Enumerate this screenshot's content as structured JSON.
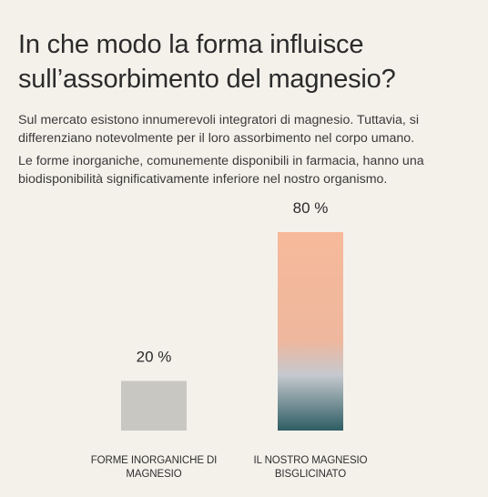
{
  "title": "In che modo la forma influisce sull’assorbimento del magnesio?",
  "paragraphs": [
    "Sul mercato esistono innumerevoli integratori di magnesio. Tuttavia, si differenziano notevolmente per il loro assorbimento nel corpo umano.",
    "Le forme inorganiche, comunemente disponibili in farmacia, hanno una biodisponibilità significativamente inferiore nel nostro organismo."
  ],
  "chart_data": {
    "type": "bar",
    "categories": [
      [
        "FORME INORGANICHE DI",
        "MAGNESIO"
      ],
      [
        "IL NOSTRO MAGNESIO",
        "BISGLICINATO"
      ]
    ],
    "values": [
      20,
      80
    ],
    "value_labels": [
      "20 %",
      "80 %"
    ],
    "title": "",
    "xlabel": "",
    "ylabel": "",
    "ylim": [
      0,
      80
    ],
    "grid": false,
    "colors": {
      "bar_inorganic": "#c8c7c2",
      "bar_gradient_top": "#f7b99a",
      "bar_gradient_mid": "#c5c9cf",
      "bar_gradient_bottom": "#2d5d63"
    }
  }
}
